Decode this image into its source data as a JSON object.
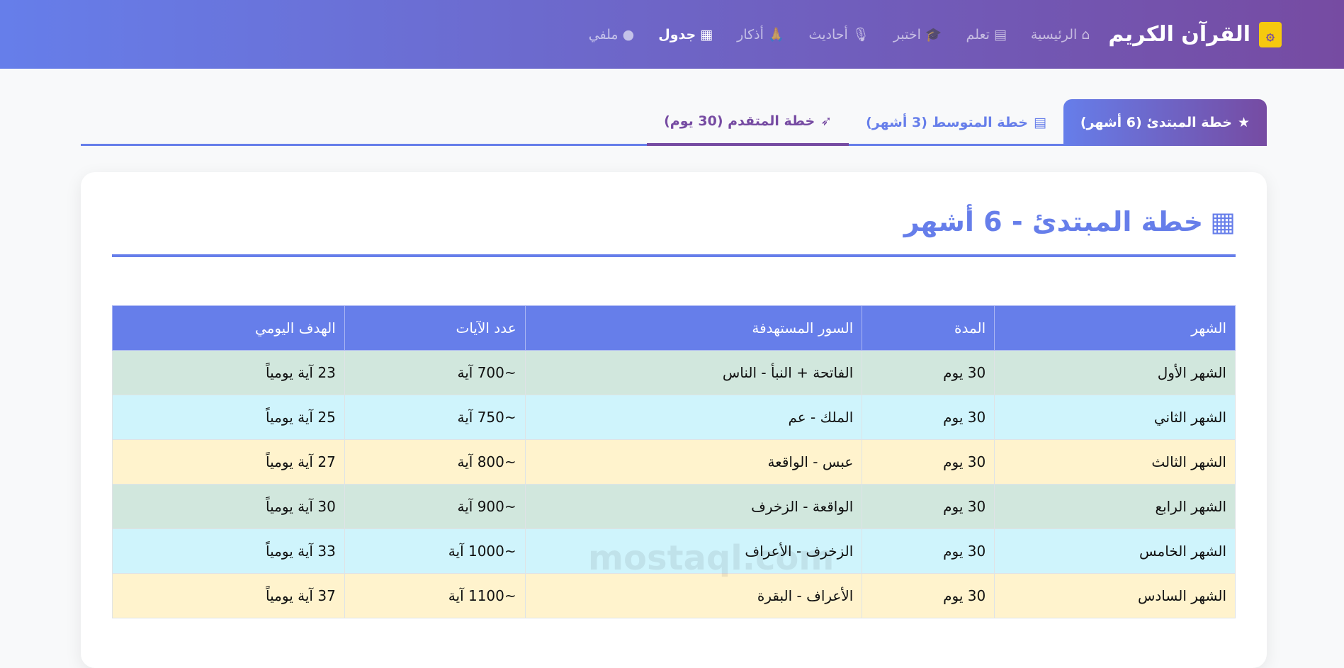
{
  "nav": {
    "brand": "القرآن الكريم",
    "items": [
      {
        "label": "الرئيسية",
        "icon": "home-icon",
        "glyph": "⌂",
        "active": false
      },
      {
        "label": "تعلم",
        "icon": "book-icon",
        "glyph": "▤",
        "active": false
      },
      {
        "label": "اختبر",
        "icon": "graduation-cap-icon",
        "glyph": "🎓",
        "active": false
      },
      {
        "label": "أحاديث",
        "icon": "microphone-icon",
        "glyph": "🎙",
        "active": false
      },
      {
        "label": "أذكار",
        "icon": "praying-hands-icon",
        "glyph": "🙏",
        "active": false
      },
      {
        "label": "جدول",
        "icon": "calendar-icon",
        "glyph": "▦",
        "active": true
      },
      {
        "label": "ملفي",
        "icon": "user-circle-icon",
        "glyph": "●",
        "active": false
      }
    ]
  },
  "tabs": [
    {
      "label": "خطة المبتدئ (6 أشهر)",
      "icon": "star-icon",
      "glyph": "★"
    },
    {
      "label": "خطة المتوسط (3 أشهر)",
      "icon": "book-icon",
      "glyph": "▤"
    },
    {
      "label": "خطة المتقدم (30 يوم)",
      "icon": "rocket-icon",
      "glyph": "➶"
    }
  ],
  "plan": {
    "title": "خطة المبتدئ - 6 أشهر",
    "headers": [
      "الشهر",
      "المدة",
      "السور المستهدفة",
      "عدد الآيات",
      "الهدف اليومي"
    ],
    "rows": [
      [
        "الشهر الأول",
        "30 يوم",
        "الفاتحة + النبأ - الناس",
        "~700 آية",
        "23 آية يومياً"
      ],
      [
        "الشهر الثاني",
        "30 يوم",
        "الملك - عم",
        "~750 آية",
        "25 آية يومياً"
      ],
      [
        "الشهر الثالث",
        "30 يوم",
        "عبس - الواقعة",
        "~800 آية",
        "27 آية يومياً"
      ],
      [
        "الشهر الرابع",
        "30 يوم",
        "الواقعة - الزخرف",
        "~900 آية",
        "30 آية يومياً"
      ],
      [
        "الشهر الخامس",
        "30 يوم",
        "الزخرف - الأعراف",
        "~1000 آية",
        "33 آية يومياً"
      ],
      [
        "الشهر السادس",
        "30 يوم",
        "الأعراف - البقرة",
        "~1100 آية",
        "37 آية يومياً"
      ]
    ]
  },
  "watermark": "mostaql.com",
  "colors": {
    "primary": "#667eea",
    "secondary": "#764ba2",
    "row_green": "#d1e7dd",
    "row_cyan": "#cff4fc",
    "row_yellow": "#fff3cd"
  }
}
